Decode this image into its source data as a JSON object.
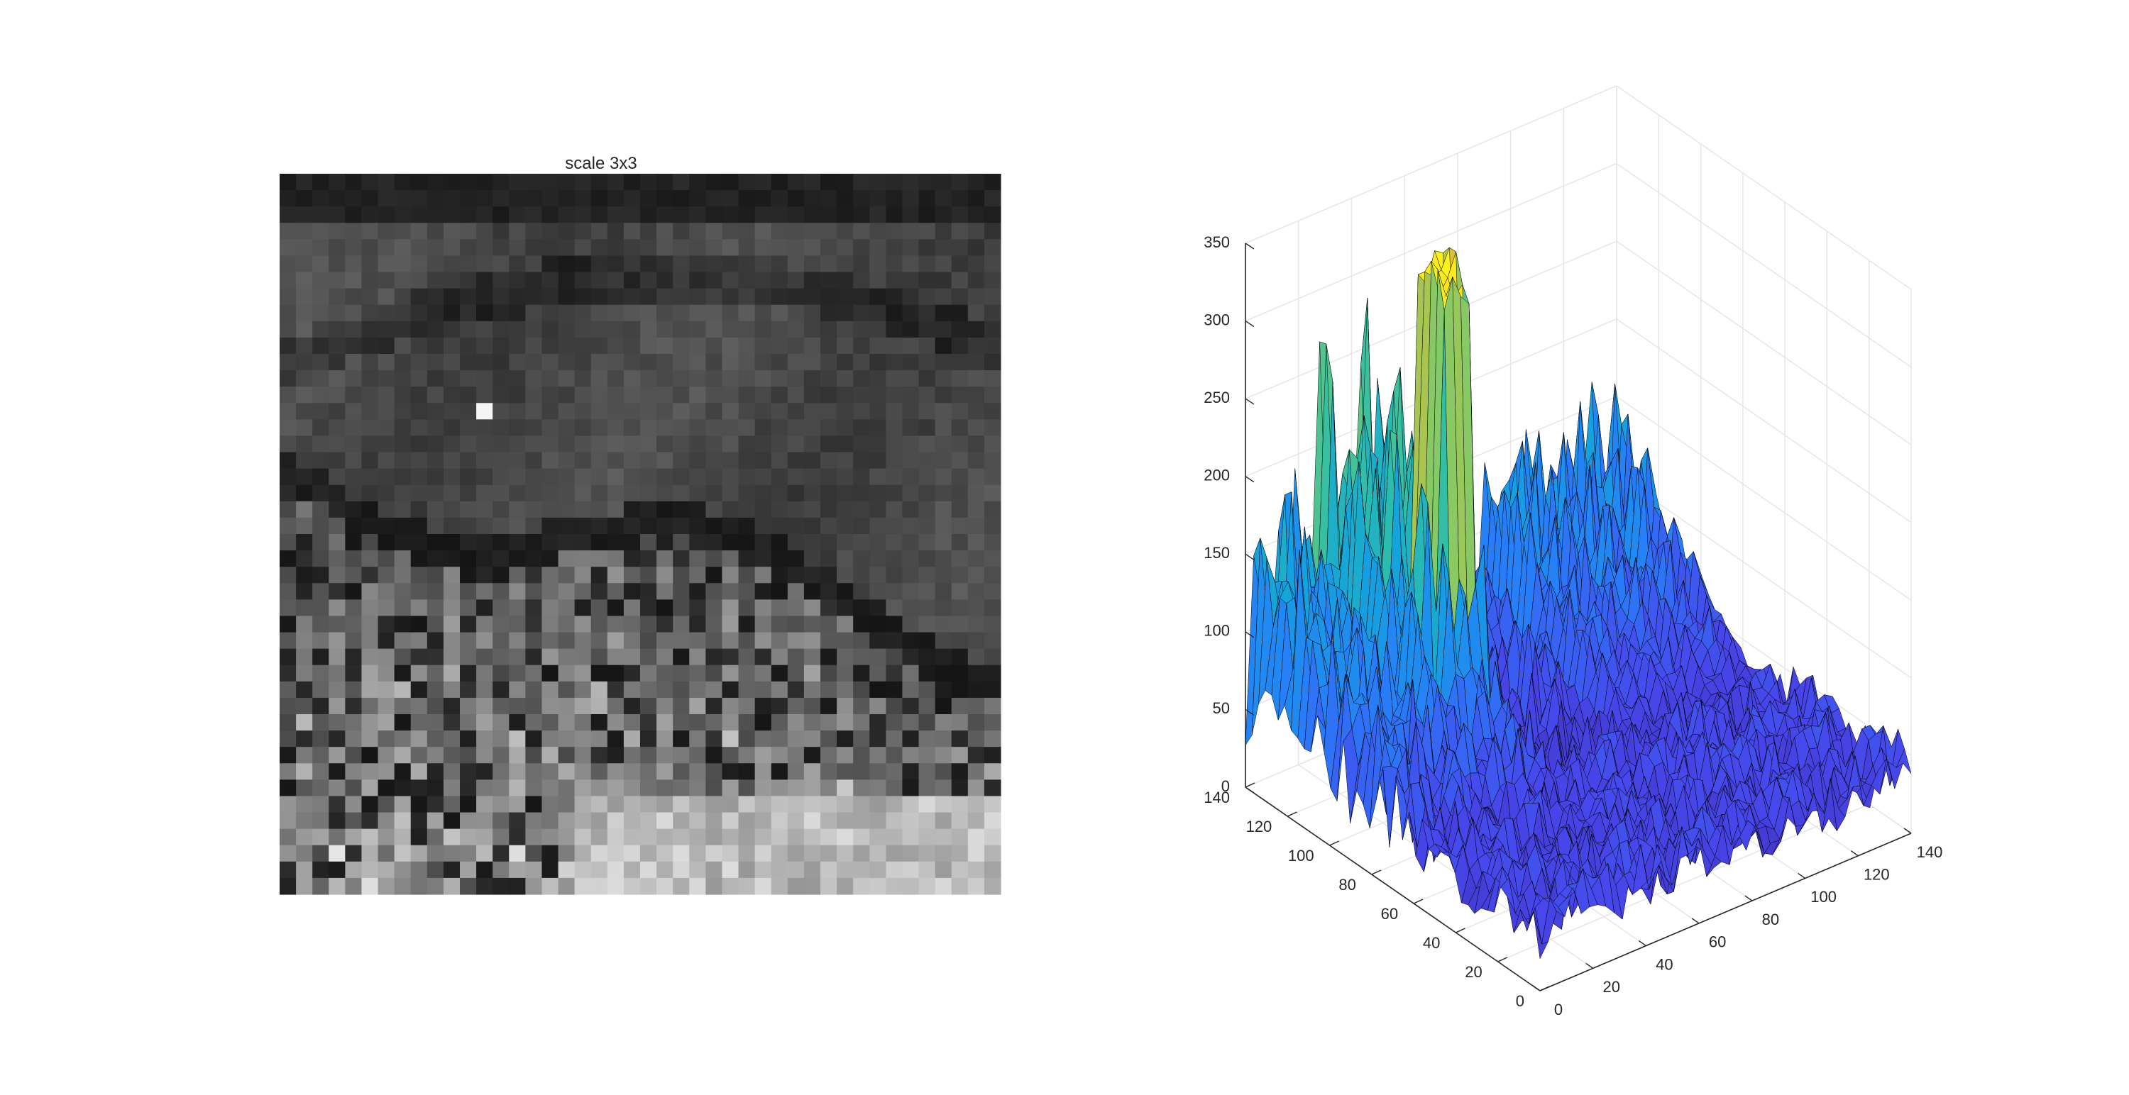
{
  "figure": {
    "background": "#ffffff"
  },
  "chart_data": [
    {
      "type": "heatmap",
      "title": "scale 3x3",
      "colormap": "gray",
      "grid_size": [
        44,
        44
      ],
      "axes_visible": false,
      "description_values": "grayscale pixel intensities (0-255)"
    },
    {
      "type": "surface",
      "title": "",
      "colormap": "parula",
      "edge_color": "#000000",
      "x_ticks": [
        0,
        20,
        40,
        60,
        80,
        100,
        120,
        140
      ],
      "y_ticks": [
        0,
        20,
        40,
        60,
        80,
        100,
        120,
        140
      ],
      "z_ticks": [
        0,
        50,
        100,
        150,
        200,
        250,
        300,
        350
      ],
      "xlim": [
        0,
        140
      ],
      "ylim": [
        0,
        140
      ],
      "zlim": [
        0,
        350
      ],
      "grid": true,
      "peak_value": 345
    }
  ]
}
